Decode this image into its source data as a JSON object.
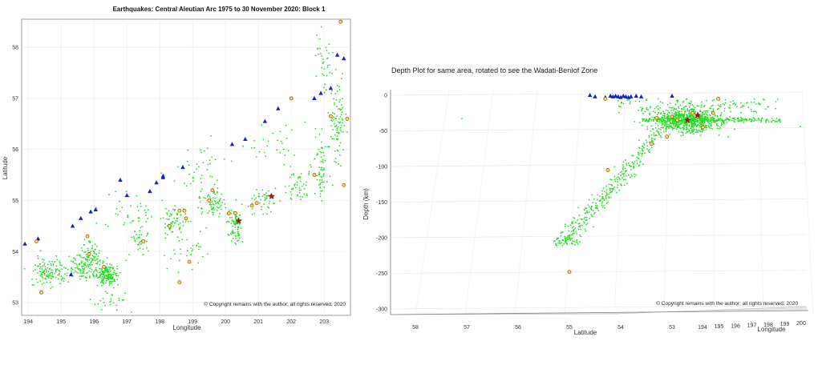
{
  "chart_data": [
    {
      "type": "scatter",
      "title": "Earthquakes: Central Aleutian Arc 1975 to 30 November 2020: Block 1",
      "xlabel": "Longitude",
      "ylabel": "Latitude",
      "xlim": [
        193.8,
        203.8
      ],
      "ylim": [
        52.75,
        58.55
      ],
      "xticks": [
        "194",
        "195",
        "196",
        "197",
        "198",
        "199",
        "200",
        "201",
        "202",
        "203"
      ],
      "yticks": [
        "53",
        "54",
        "55",
        "56",
        "57",
        "58"
      ],
      "grid": true,
      "copyright": "© Copyright remains with the author; all rights reserved, 2020",
      "colors": {
        "quake": "#22dd22",
        "volcano": "#1122cc",
        "circle_fill": "#f0e070",
        "circle_edge": "#aa5500",
        "star": "#bb1111"
      },
      "series": [
        {
          "marker": "triangle",
          "points": [
            [
              193.9,
              54.15
            ],
            [
              194.3,
              54.25
            ],
            [
              195.35,
              54.5
            ],
            [
              195.6,
              54.65
            ],
            [
              195.9,
              54.78
            ],
            [
              196.05,
              54.82
            ],
            [
              196.8,
              55.4
            ],
            [
              197.0,
              55.1
            ],
            [
              197.7,
              55.18
            ],
            [
              197.9,
              55.35
            ],
            [
              198.1,
              55.45
            ],
            [
              198.1,
              55.48
            ],
            [
              198.7,
              55.65
            ],
            [
              200.2,
              56.1
            ],
            [
              200.6,
              56.2
            ],
            [
              201.2,
              56.55
            ],
            [
              201.6,
              56.8
            ],
            [
              202.7,
              57.0
            ],
            [
              202.9,
              57.1
            ],
            [
              203.2,
              57.2
            ],
            [
              203.4,
              57.85
            ],
            [
              203.6,
              57.78
            ],
            [
              195.3,
              53.55
            ]
          ]
        },
        {
          "marker": "circle",
          "points": [
            [
              194.4,
              53.2
            ],
            [
              194.25,
              54.2
            ],
            [
              195.8,
              54.3
            ],
            [
              195.85,
              53.95
            ],
            [
              196.3,
              53.7
            ],
            [
              197.5,
              54.2
            ],
            [
              198.3,
              54.5
            ],
            [
              198.6,
              54.8
            ],
            [
              198.75,
              54.8
            ],
            [
              198.8,
              54.65
            ],
            [
              198.9,
              53.8
            ],
            [
              198.6,
              53.4
            ],
            [
              199.5,
              55.0
            ],
            [
              199.6,
              55.2
            ],
            [
              200.1,
              54.75
            ],
            [
              200.3,
              54.75
            ],
            [
              200.8,
              54.9
            ],
            [
              200.95,
              54.95
            ],
            [
              202.0,
              57.0
            ],
            [
              202.7,
              55.5
            ],
            [
              203.2,
              56.65
            ],
            [
              203.5,
              58.5
            ],
            [
              203.7,
              56.6
            ],
            [
              203.6,
              55.3
            ]
          ]
        },
        {
          "marker": "star",
          "points": [
            [
              200.4,
              54.6
            ],
            [
              201.4,
              55.08
            ]
          ]
        }
      ]
    },
    {
      "type": "scatter",
      "title": "Depth Plot for same area, rotated to see the Wadati-Benìof Zone",
      "xlabel": "Latitude",
      "x2label": "Longitude",
      "ylabel": "Depth (km)",
      "ylim": [
        -300,
        0
      ],
      "yticks": [
        "0",
        "-50",
        "-100",
        "-150",
        "-200",
        "-250",
        "-300"
      ],
      "lat_ticks": [
        "58",
        "57",
        "56",
        "55",
        "54",
        "53"
      ],
      "lon_ticks": [
        "194",
        "195",
        "196",
        "197",
        "198",
        "199",
        "200"
      ],
      "copyright": "© Copyright remains with the author; all rights reserved, 2020",
      "series": [
        {
          "marker": "triangle",
          "points": [
            [
              54.6,
              0
            ],
            [
              54.5,
              -2
            ],
            [
              54.3,
              -3
            ],
            [
              54.2,
              -1
            ],
            [
              54.15,
              -2
            ],
            [
              54.1,
              -1
            ],
            [
              54.05,
              -2
            ],
            [
              54.0,
              -3
            ],
            [
              53.95,
              -1
            ],
            [
              53.9,
              -2
            ],
            [
              53.85,
              -3
            ],
            [
              53.8,
              -2
            ],
            [
              53.7,
              -1
            ],
            [
              53.6,
              -2
            ],
            [
              53.0,
              -1
            ]
          ]
        },
        {
          "marker": "circle",
          "points": [
            [
              55.0,
              -248
            ],
            [
              54.25,
              -105
            ],
            [
              54.3,
              -5
            ],
            [
              53.3,
              -32
            ],
            [
              53.0,
              -30
            ],
            [
              52.9,
              -35
            ],
            [
              52.6,
              -25
            ],
            [
              52.5,
              -30
            ],
            [
              52.4,
              -45
            ],
            [
              52.2,
              -25
            ],
            [
              52.1,
              -5
            ],
            [
              53.1,
              -58
            ],
            [
              53.4,
              -68
            ]
          ]
        },
        {
          "marker": "star",
          "points": [
            [
              52.7,
              -35
            ],
            [
              52.5,
              -28
            ]
          ]
        }
      ]
    }
  ]
}
